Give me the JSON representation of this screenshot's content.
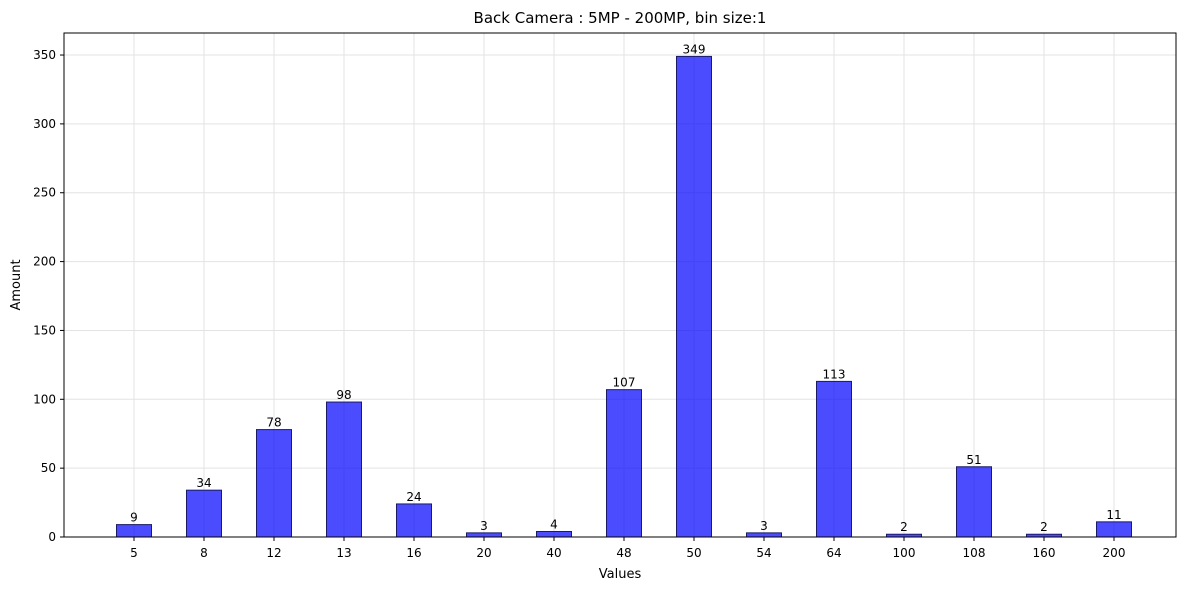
{
  "chart_data": {
    "type": "bar",
    "title": "Back Camera : 5MP - 200MP, bin size:1",
    "xlabel": "Values",
    "ylabel": "Amount",
    "categories": [
      "5",
      "8",
      "12",
      "13",
      "16",
      "20",
      "40",
      "48",
      "50",
      "54",
      "64",
      "100",
      "108",
      "160",
      "200"
    ],
    "values": [
      9,
      34,
      78,
      98,
      24,
      3,
      4,
      107,
      349,
      3,
      113,
      2,
      51,
      2,
      11
    ],
    "ylim": [
      0,
      366
    ],
    "yticks": [
      0,
      50,
      100,
      150,
      200,
      250,
      300,
      350
    ],
    "grid": true,
    "bar_color": "#0000ff",
    "bar_edge_color": "#1a1a66"
  }
}
